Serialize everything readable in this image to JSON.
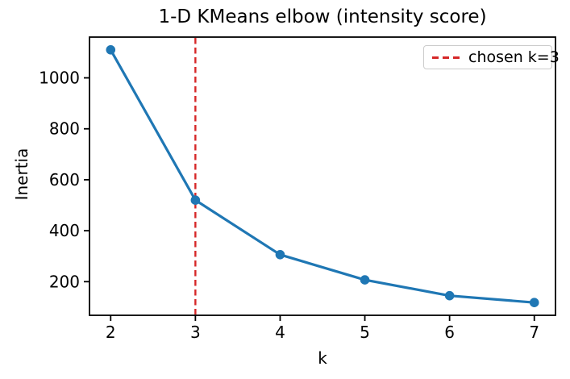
{
  "chart_data": {
    "type": "line",
    "title": "1-D KMeans elbow (intensity score)",
    "xlabel": "k",
    "ylabel": "Inertia",
    "x": [
      2,
      3,
      4,
      5,
      6,
      7
    ],
    "series": [
      {
        "name": "inertia",
        "values": [
          1110,
          520,
          306,
          207,
          145,
          118
        ],
        "color": "#1f77b4",
        "marker": "circle"
      }
    ],
    "vline": {
      "x": 3,
      "color": "#d62728",
      "style": "dashed"
    },
    "xticks": [
      2,
      3,
      4,
      5,
      6,
      7
    ],
    "yticks": [
      200,
      400,
      600,
      800,
      1000
    ],
    "xlim": [
      1.75,
      7.25
    ],
    "ylim": [
      68,
      1160
    ],
    "grid": false,
    "legend": {
      "position": "upper right",
      "entries": [
        {
          "label": "chosen k=3",
          "color": "#d62728",
          "line_style": "dashed"
        }
      ]
    },
    "colors": {
      "line": "#1f77b4",
      "vline": "#d62728",
      "spine": "#000000",
      "background": "#ffffff",
      "legend_border": "#cccccc"
    }
  }
}
